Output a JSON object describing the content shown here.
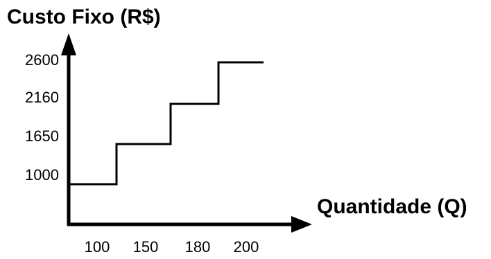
{
  "chart_data": {
    "type": "line",
    "step": true,
    "ylabel": "Custo Fixo (R$)",
    "xlabel": "Quantidade (Q)",
    "y_ticks": [
      1000,
      1650,
      2160,
      2600
    ],
    "x_ticks": [
      "100",
      "150",
      "180",
      "200"
    ],
    "series": [
      {
        "steps": [
          {
            "x_from": 0,
            "x_to": 100,
            "y": 1000
          },
          {
            "x_from": 100,
            "x_to": 150,
            "y": 1650
          },
          {
            "x_from": 150,
            "x_to": 180,
            "y": 2160
          },
          {
            "x_from": 180,
            "x_to": 200,
            "y": 2600
          }
        ]
      }
    ],
    "line_color": "#000000"
  }
}
